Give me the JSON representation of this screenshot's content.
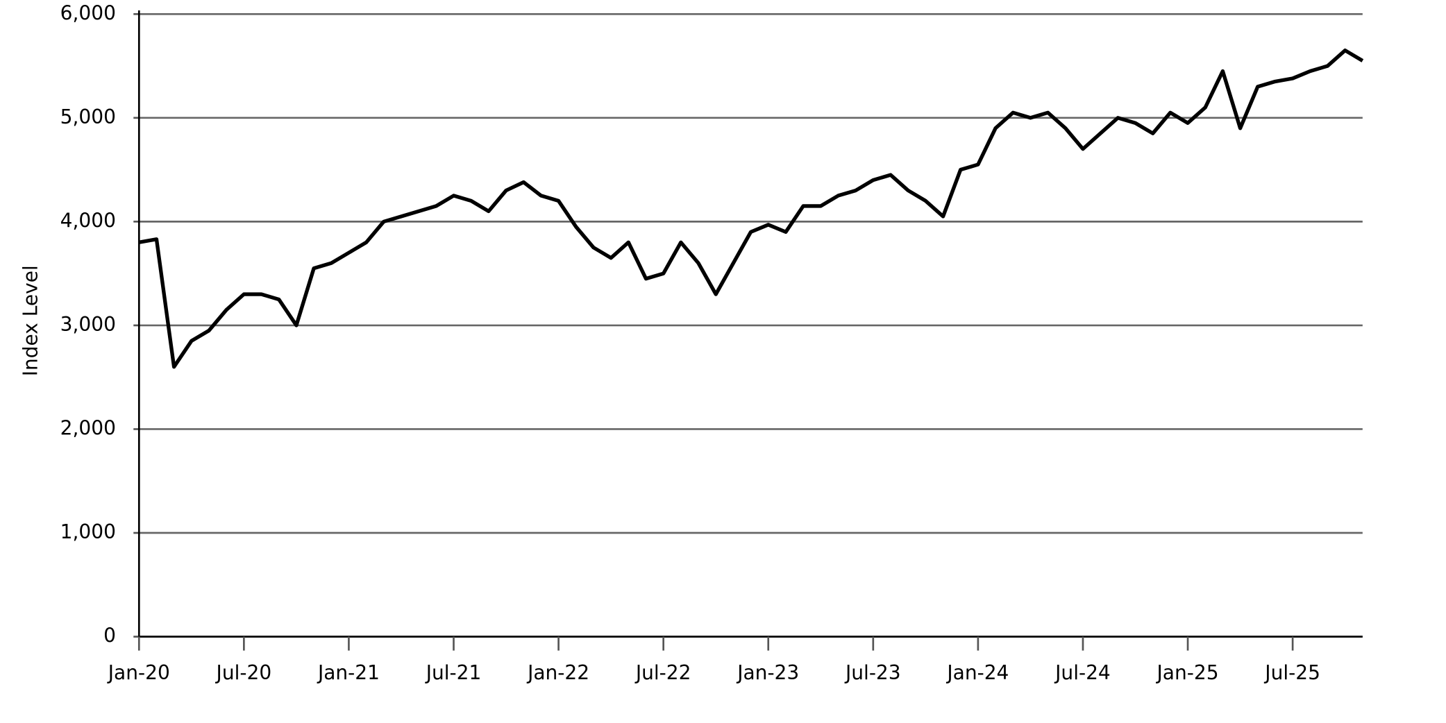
{
  "chart_data": {
    "type": "line",
    "y_label": "Index Level",
    "color": "#000000",
    "grid": true,
    "categories": [
      "Jan-20",
      null,
      null,
      null,
      null,
      null,
      "Jul-20",
      null,
      null,
      null,
      null,
      null,
      "Jan-21",
      null,
      null,
      null,
      null,
      null,
      "Jul-21",
      null,
      null,
      null,
      null,
      null,
      "Jan-22",
      null,
      null,
      null,
      null,
      null,
      "Jul-22",
      null,
      null,
      null,
      null,
      null,
      "Jan-23",
      null,
      null,
      null,
      null,
      null,
      "Jul-23",
      null,
      null,
      null,
      null,
      null,
      "Jan-24",
      null,
      null,
      null,
      null,
      null,
      "Jul-24",
      null,
      null,
      null,
      null,
      null,
      "Jan-25",
      null,
      null,
      null,
      null,
      null,
      "Jul-25",
      null,
      null,
      null,
      null
    ],
    "values": [
      3800,
      3830,
      2600,
      2850,
      2950,
      3150,
      3300,
      3300,
      3250,
      3000,
      3550,
      3600,
      3700,
      3800,
      4000,
      4050,
      4100,
      4150,
      4250,
      4200,
      4100,
      4300,
      4380,
      4250,
      4200,
      3950,
      3750,
      3650,
      3800,
      3450,
      3500,
      3800,
      3600,
      3300,
      3600,
      3900,
      3970,
      3900,
      4150,
      4150,
      4250,
      4300,
      4400,
      4450,
      4300,
      4200,
      4050,
      4500,
      4550,
      4900,
      5050,
      5000,
      5050,
      4900,
      4700,
      4850,
      5000,
      4950,
      4850,
      5050,
      4950,
      5100,
      5450,
      4900,
      5300,
      5350,
      5380,
      5450,
      5500,
      5650,
      5550
    ],
    "ylim": [
      0,
      6000
    ],
    "yticks": [
      0,
      {
        "value": 1000,
        "label": "1,000"
      },
      {
        "value": 2000,
        "label": "2,000"
      },
      {
        "value": 3000,
        "label": "3,000"
      },
      {
        "value": 4000,
        "label": "4,000"
      },
      {
        "value": 5000,
        "label": "5,000"
      },
      {
        "value": 6000,
        "label": "6,000"
      }
    ]
  }
}
